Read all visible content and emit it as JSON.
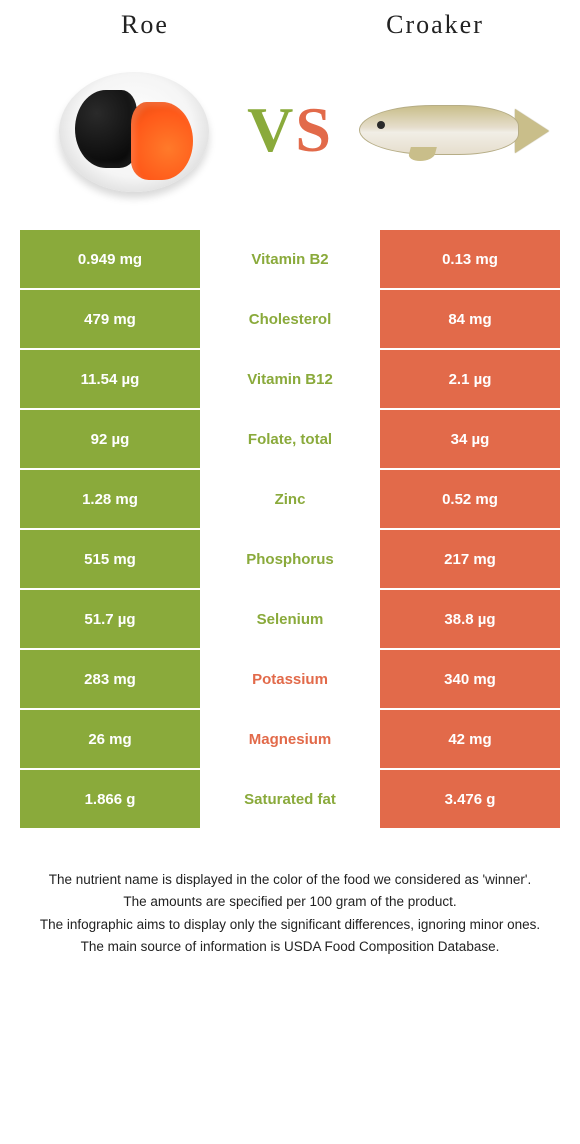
{
  "colors": {
    "left_name": "Roe",
    "right_name": "Croaker",
    "left_hex": "#8aaa3b",
    "right_hex": "#e26a4a",
    "white": "#ffffff"
  },
  "vs": {
    "v": "V",
    "s": "S"
  },
  "rows": [
    {
      "left": "0.949 mg",
      "label": "Vitamin B2",
      "right": "0.13 mg",
      "winner": "left"
    },
    {
      "left": "479 mg",
      "label": "Cholesterol",
      "right": "84 mg",
      "winner": "left"
    },
    {
      "left": "11.54 µg",
      "label": "Vitamin B12",
      "right": "2.1 µg",
      "winner": "left"
    },
    {
      "left": "92 µg",
      "label": "Folate, total",
      "right": "34 µg",
      "winner": "left"
    },
    {
      "left": "1.28 mg",
      "label": "Zinc",
      "right": "0.52 mg",
      "winner": "left"
    },
    {
      "left": "515 mg",
      "label": "Phosphorus",
      "right": "217 mg",
      "winner": "left"
    },
    {
      "left": "51.7 µg",
      "label": "Selenium",
      "right": "38.8 µg",
      "winner": "left"
    },
    {
      "left": "283 mg",
      "label": "Potassium",
      "right": "340 mg",
      "winner": "right"
    },
    {
      "left": "26 mg",
      "label": "Magnesium",
      "right": "42 mg",
      "winner": "right"
    },
    {
      "left": "1.866 g",
      "label": "Saturated fat",
      "right": "3.476 g",
      "winner": "left"
    }
  ],
  "footer": {
    "l1": "The nutrient name is displayed in the color of the food we considered as 'winner'.",
    "l2": "The amounts are specified per 100 gram of the product.",
    "l3": "The infographic aims to display only the significant differences, ignoring minor ones.",
    "l4": "The main source of information is USDA Food Composition Database."
  }
}
